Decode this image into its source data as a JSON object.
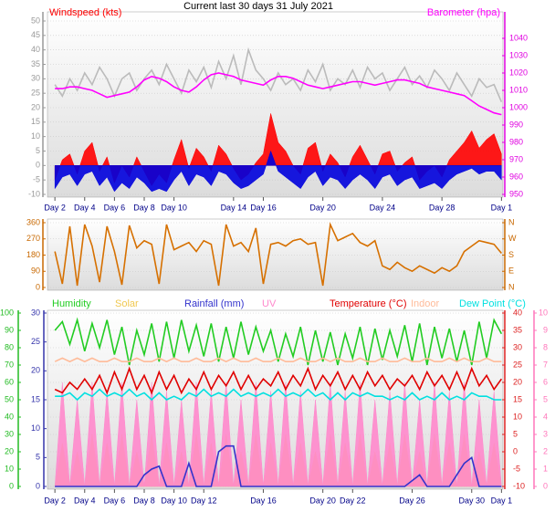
{
  "title": "Current last 30 days 31 July 2021",
  "chart_data": [
    {
      "type": "line",
      "x": [
        1,
        1.5,
        2,
        2.5,
        3,
        3.5,
        4,
        4.5,
        5,
        5.5,
        6,
        6.5,
        7,
        7.5,
        8,
        8.5,
        9,
        9.5,
        10,
        10.5,
        11,
        11.5,
        12,
        12.5,
        13,
        13.5,
        14,
        14.5,
        15,
        15.5,
        16,
        16.5,
        17,
        17.5,
        18,
        18.5,
        19,
        19.5,
        20,
        20.5,
        21,
        21.5,
        22,
        22.5,
        23,
        23.5,
        24,
        24.5,
        25,
        25.5,
        26,
        26.5,
        27,
        27.5,
        28,
        28.5,
        29,
        29.5,
        30,
        30.5,
        31
      ],
      "xlim": [
        0.5,
        31.1
      ],
      "xticks": [
        {
          "value": 1,
          "label": "Day 2"
        },
        {
          "value": 3,
          "label": "Day 4"
        },
        {
          "value": 5,
          "label": "Day 6"
        },
        {
          "value": 7,
          "label": "Day 8"
        },
        {
          "value": 9,
          "label": "Day 10"
        },
        {
          "value": 13,
          "label": "Day 14"
        },
        {
          "value": 15,
          "label": "Day 16"
        },
        {
          "value": 19,
          "label": "Day 20"
        },
        {
          "value": 23,
          "label": "Day 24"
        },
        {
          "value": 27,
          "label": "Day 28"
        },
        {
          "value": 31,
          "label": "Day 1"
        }
      ],
      "ylim": [
        -10,
        50
      ],
      "yticks": [
        -10,
        -5,
        0,
        5,
        10,
        15,
        20,
        25,
        30,
        35,
        40,
        45,
        50
      ],
      "y2lim": [
        950,
        1050
      ],
      "y2ticks": [
        950,
        960,
        970,
        980,
        990,
        1000,
        1010,
        1020,
        1030,
        1040
      ],
      "grid": true,
      "series": [
        {
          "color": "#bbbbbb",
          "kind": "line",
          "values": [
            28,
            24,
            30,
            26,
            32,
            28,
            34,
            30,
            24,
            30,
            32,
            26,
            30,
            33,
            28,
            35,
            30,
            25,
            33,
            29,
            34,
            27,
            36,
            30,
            38,
            28,
            40,
            33,
            30,
            26,
            32,
            28,
            30,
            26,
            33,
            29,
            35,
            26,
            30,
            28,
            33,
            27,
            34,
            30,
            32,
            26,
            30,
            34,
            28,
            31,
            27,
            33,
            30,
            26,
            32,
            28,
            24,
            30,
            27,
            28,
            22
          ]
        },
        {
          "name": "Windspeed (kts)",
          "color": "#ff0000",
          "kind": "area",
          "values": [
            -5,
            2,
            4,
            -3,
            5,
            8,
            -2,
            3,
            -6,
            0,
            -4,
            3,
            -2,
            -7,
            -3,
            -6,
            2,
            9,
            -1,
            6,
            3,
            -2,
            7,
            4,
            -1,
            -5,
            -3,
            1,
            4,
            18,
            8,
            5,
            0,
            -3,
            6,
            8,
            -2,
            4,
            1,
            -4,
            3,
            7,
            2,
            -3,
            4,
            5,
            -2,
            1,
            3,
            -5,
            -2,
            0,
            -4,
            2,
            5,
            8,
            12,
            6,
            9,
            11,
            4
          ]
        },
        {
          "color": "#0000dd",
          "kind": "area",
          "values": [
            -8,
            -4,
            -3,
            -7,
            -3,
            -2,
            -7,
            -4,
            -9,
            -6,
            -8,
            -4,
            -6,
            -9,
            -8,
            -9,
            -5,
            -2,
            -7,
            -3,
            -4,
            -7,
            -2,
            -3,
            -6,
            -8,
            -7,
            -5,
            -3,
            5,
            -2,
            -4,
            -6,
            -8,
            -4,
            -2,
            -7,
            -4,
            -5,
            -8,
            -5,
            -3,
            -5,
            -8,
            -4,
            -3,
            -7,
            -5,
            -4,
            -8,
            -7,
            -6,
            -8,
            -5,
            -3,
            -2,
            -1,
            -3,
            -2,
            -2,
            -5
          ]
        },
        {
          "name": "Barometer (hpa)",
          "color": "#ff00ff",
          "kind": "line",
          "axis": "y2",
          "values": [
            1011,
            1011,
            1012,
            1012,
            1011,
            1010,
            1008,
            1006,
            1007,
            1008,
            1009,
            1012,
            1016,
            1018,
            1017,
            1015,
            1012,
            1010,
            1009,
            1012,
            1016,
            1019,
            1020,
            1019,
            1018,
            1016,
            1015,
            1014,
            1013,
            1016,
            1018,
            1018,
            1017,
            1015,
            1013,
            1012,
            1011,
            1012,
            1013,
            1014,
            1015,
            1015,
            1014,
            1013,
            1014,
            1015,
            1016,
            1016,
            1015,
            1014,
            1012,
            1011,
            1010,
            1009,
            1008,
            1007,
            1004,
            1001,
            999,
            997,
            996
          ]
        }
      ]
    },
    {
      "type": "line",
      "x": [
        1,
        1.5,
        2,
        2.5,
        3,
        3.5,
        4,
        4.5,
        5,
        5.5,
        6,
        6.5,
        7,
        7.5,
        8,
        8.5,
        9,
        9.5,
        10,
        10.5,
        11,
        11.5,
        12,
        12.5,
        13,
        13.5,
        14,
        14.5,
        15,
        15.5,
        16,
        16.5,
        17,
        17.5,
        18,
        18.5,
        19,
        19.5,
        20,
        20.5,
        21,
        21.5,
        22,
        22.5,
        23,
        23.5,
        24,
        24.5,
        25,
        25.5,
        26,
        26.5,
        27,
        27.5,
        28,
        28.5,
        29,
        29.5,
        30,
        30.5,
        31
      ],
      "xlim": [
        0.5,
        31.1
      ],
      "ylim": [
        0,
        360
      ],
      "yticks": [
        0,
        90,
        180,
        270,
        360
      ],
      "y2lim": [
        0,
        360
      ],
      "y2ticks": [
        {
          "value": 0,
          "label": "N"
        },
        {
          "value": 90,
          "label": "E"
        },
        {
          "value": 180,
          "label": "S"
        },
        {
          "value": 270,
          "label": "W"
        },
        {
          "value": 360,
          "label": "N"
        }
      ],
      "grid": true,
      "series": [
        {
          "color": "#d67000",
          "kind": "line",
          "values": [
            200,
            20,
            340,
            10,
            350,
            230,
            30,
            340,
            200,
            15,
            345,
            220,
            260,
            240,
            20,
            350,
            210,
            230,
            250,
            200,
            260,
            240,
            10,
            350,
            230,
            250,
            200,
            330,
            20,
            240,
            250,
            230,
            260,
            270,
            240,
            250,
            10,
            350,
            260,
            280,
            300,
            250,
            230,
            260,
            120,
            100,
            140,
            110,
            90,
            120,
            100,
            80,
            110,
            90,
            120,
            200,
            230,
            260,
            250,
            240,
            190
          ]
        }
      ]
    },
    {
      "type": "line",
      "x": [
        1,
        1.5,
        2,
        2.5,
        3,
        3.5,
        4,
        4.5,
        5,
        5.5,
        6,
        6.5,
        7,
        7.5,
        8,
        8.5,
        9,
        9.5,
        10,
        10.5,
        11,
        11.5,
        12,
        12.5,
        13,
        13.5,
        14,
        14.5,
        15,
        15.5,
        16,
        16.5,
        17,
        17.5,
        18,
        18.5,
        19,
        19.5,
        20,
        20.5,
        21,
        21.5,
        22,
        22.5,
        23,
        23.5,
        24,
        24.5,
        25,
        25.5,
        26,
        26.5,
        27,
        27.5,
        28,
        28.5,
        29,
        29.5,
        30,
        30.5,
        31
      ],
      "xlim": [
        0.5,
        31.1
      ],
      "xticks": [
        {
          "value": 1,
          "label": "Day 2"
        },
        {
          "value": 3,
          "label": "Day 4"
        },
        {
          "value": 5,
          "label": "Day 6"
        },
        {
          "value": 7,
          "label": "Day 8"
        },
        {
          "value": 9,
          "label": "Day 10"
        },
        {
          "value": 11,
          "label": "Day 12"
        },
        {
          "value": 15,
          "label": "Day 16"
        },
        {
          "value": 19,
          "label": "Day 20"
        },
        {
          "value": 21,
          "label": "Day 22"
        },
        {
          "value": 25,
          "label": "Day 26"
        },
        {
          "value": 29,
          "label": "Day 30"
        },
        {
          "value": 31,
          "label": "Day 1"
        }
      ],
      "ylim": [
        0,
        100
      ],
      "yticks": [
        0,
        10,
        20,
        30,
        40,
        50,
        60,
        70,
        80,
        90,
        100
      ],
      "y3lim": [
        0,
        30
      ],
      "y3ticks": [
        0,
        5,
        10,
        15,
        20,
        25,
        30
      ],
      "y2lim": [
        -10,
        40
      ],
      "y2ticks": [
        -10,
        -5,
        0,
        5,
        10,
        15,
        20,
        25,
        30,
        35,
        40
      ],
      "y4lim": [
        0,
        10
      ],
      "y4ticks": [
        0,
        1,
        2,
        3,
        4,
        5,
        6,
        7,
        8,
        9,
        10
      ],
      "grid": true,
      "series": [
        {
          "name": "Humidity",
          "color": "#22cc22",
          "kind": "line",
          "values": [
            90,
            95,
            82,
            96,
            78,
            94,
            80,
            96,
            76,
            92,
            70,
            90,
            76,
            94,
            72,
            95,
            74,
            96,
            78,
            93,
            75,
            94,
            72,
            92,
            74,
            95,
            76,
            92,
            78,
            90,
            72,
            88,
            75,
            92,
            70,
            90,
            72,
            89,
            70,
            88,
            74,
            92,
            70,
            91,
            73,
            90,
            75,
            93,
            72,
            94,
            70,
            92,
            74,
            91,
            72,
            90,
            70,
            95,
            74,
            96,
            88
          ]
        },
        {
          "name": "Solar",
          "color": "#f0c850",
          "kind": "area",
          "axis": "y4",
          "values": [
            0,
            2.5,
            0,
            2,
            0,
            3,
            0,
            2.5,
            0,
            3,
            0,
            2,
            0,
            3,
            0,
            2.5,
            0,
            2,
            0,
            3,
            0,
            2.5,
            0,
            3,
            0,
            2,
            0,
            3,
            0,
            2.5,
            0,
            3,
            0,
            2.5,
            0,
            2,
            0,
            3,
            0,
            2.5,
            0,
            3,
            0,
            2,
            0,
            2.5,
            0,
            3,
            0,
            2,
            0,
            3,
            0,
            2.5,
            0,
            3,
            0,
            2,
            0,
            2.5,
            0
          ]
        },
        {
          "name": "Rainfall (mm)",
          "color": "#3333cc",
          "kind": "line",
          "axis": "y3",
          "values": [
            0,
            0,
            0,
            0,
            0,
            0,
            0,
            0,
            0,
            0,
            0,
            0,
            2,
            3,
            3.5,
            0,
            0,
            0,
            4,
            0,
            0,
            0,
            6,
            7,
            7,
            0,
            0,
            0,
            0,
            0,
            0,
            0,
            0,
            0,
            0,
            0,
            0,
            0,
            0,
            0,
            0,
            0,
            0,
            0,
            0,
            0,
            0,
            0,
            1,
            2,
            0,
            0,
            0,
            0,
            2,
            4,
            5,
            0,
            0,
            0,
            0
          ]
        },
        {
          "name": "UV",
          "color": "#ff88cc",
          "kind": "area",
          "axis": "y4",
          "values": [
            0,
            6,
            0,
            5,
            0,
            6,
            0,
            5.5,
            0,
            6,
            0,
            5,
            0,
            6,
            0,
            5.5,
            0,
            5,
            0,
            6,
            0,
            5.5,
            0,
            6,
            0,
            5,
            0,
            6,
            0,
            5.5,
            0,
            6,
            0,
            5.5,
            0,
            5,
            0,
            6,
            0,
            5.5,
            0,
            6,
            0,
            5,
            0,
            5.5,
            0,
            6,
            0,
            5,
            0,
            6,
            0,
            5.5,
            0,
            6,
            0,
            5,
            0,
            5.5,
            0
          ]
        },
        {
          "name": "Temperature (°C)",
          "color": "#e00000",
          "kind": "line",
          "axis": "y2",
          "values": [
            18,
            17,
            20,
            18,
            21,
            18,
            22,
            17,
            23,
            18,
            24,
            18,
            22,
            17,
            23,
            18,
            22,
            17,
            21,
            18,
            23,
            18,
            22,
            19,
            23,
            18,
            22,
            18,
            21,
            19,
            23,
            18,
            22,
            19,
            24,
            18,
            22,
            19,
            23,
            18,
            22,
            18,
            23,
            19,
            22,
            18,
            21,
            19,
            22,
            18,
            23,
            19,
            22,
            18,
            23,
            18,
            24,
            19,
            22,
            18,
            21
          ]
        },
        {
          "name": "Indoor",
          "color": "#ffbb99",
          "kind": "line",
          "axis": "y2",
          "values": [
            26,
            27,
            26,
            27,
            26,
            27,
            26,
            26,
            27,
            26,
            26,
            27,
            26,
            26,
            27,
            26,
            27,
            26,
            26,
            27,
            26,
            26,
            27,
            26,
            27,
            26,
            26,
            27,
            26,
            26,
            27,
            26,
            26,
            27,
            26,
            26,
            27,
            26,
            27,
            26,
            26,
            27,
            26,
            26,
            27,
            26,
            26,
            27,
            26,
            26,
            27,
            26,
            26,
            27,
            26,
            27,
            26,
            26,
            27,
            26,
            26
          ]
        },
        {
          "name": "Dew Point (°C)",
          "color": "#00e0e0",
          "kind": "line",
          "axis": "y2",
          "values": [
            16,
            16,
            17,
            15,
            17,
            16,
            18,
            16,
            17,
            16,
            18,
            16,
            17,
            15,
            17,
            15,
            16,
            15,
            17,
            16,
            18,
            16,
            17,
            16,
            18,
            16,
            17,
            16,
            17,
            16,
            18,
            16,
            17,
            16,
            18,
            16,
            17,
            15,
            17,
            15,
            17,
            16,
            17,
            16,
            16,
            15,
            16,
            15,
            17,
            15,
            16,
            15,
            17,
            15,
            16,
            15,
            17,
            16,
            16,
            15,
            15
          ]
        }
      ]
    }
  ]
}
